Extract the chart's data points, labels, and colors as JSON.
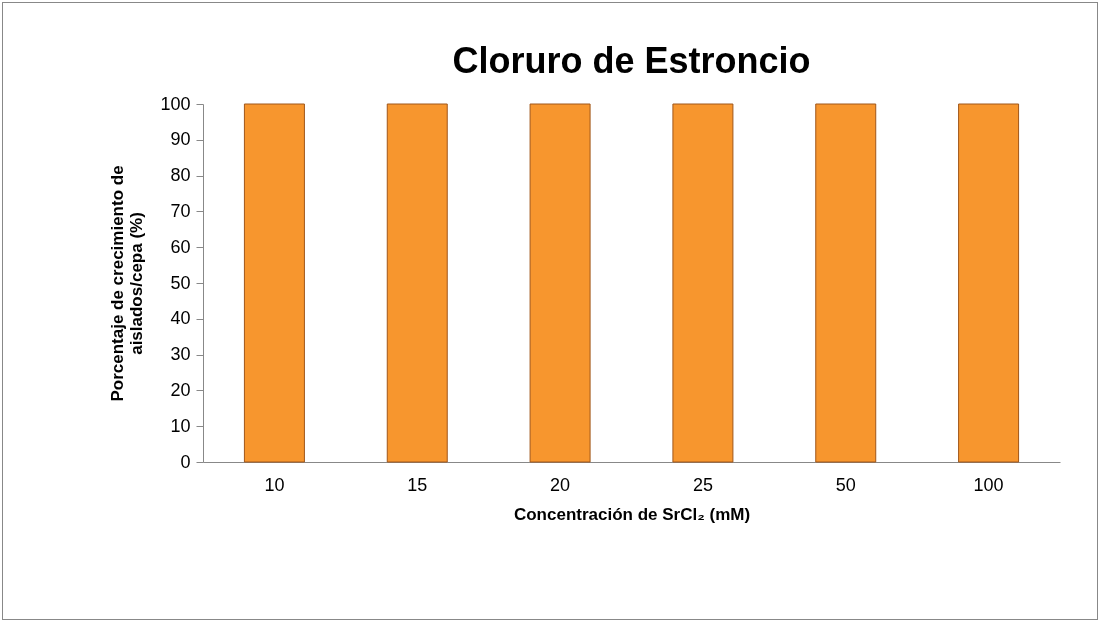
{
  "chart_data": {
    "type": "bar",
    "title": "Cloruro de Estroncio",
    "xlabel": "Concentración de SrCl₂ (mM)",
    "ylabel": "Porcentaje de crecimiento de\naislados/cepa  (%)",
    "categories": [
      "10",
      "15",
      "20",
      "25",
      "50",
      "100"
    ],
    "values": [
      100,
      100,
      100,
      100,
      100,
      100
    ],
    "color": "#f7962e",
    "ylim": [
      0,
      100
    ],
    "yticks": [
      0,
      10,
      20,
      30,
      40,
      50,
      60,
      70,
      80,
      90,
      100
    ],
    "grid": false
  }
}
